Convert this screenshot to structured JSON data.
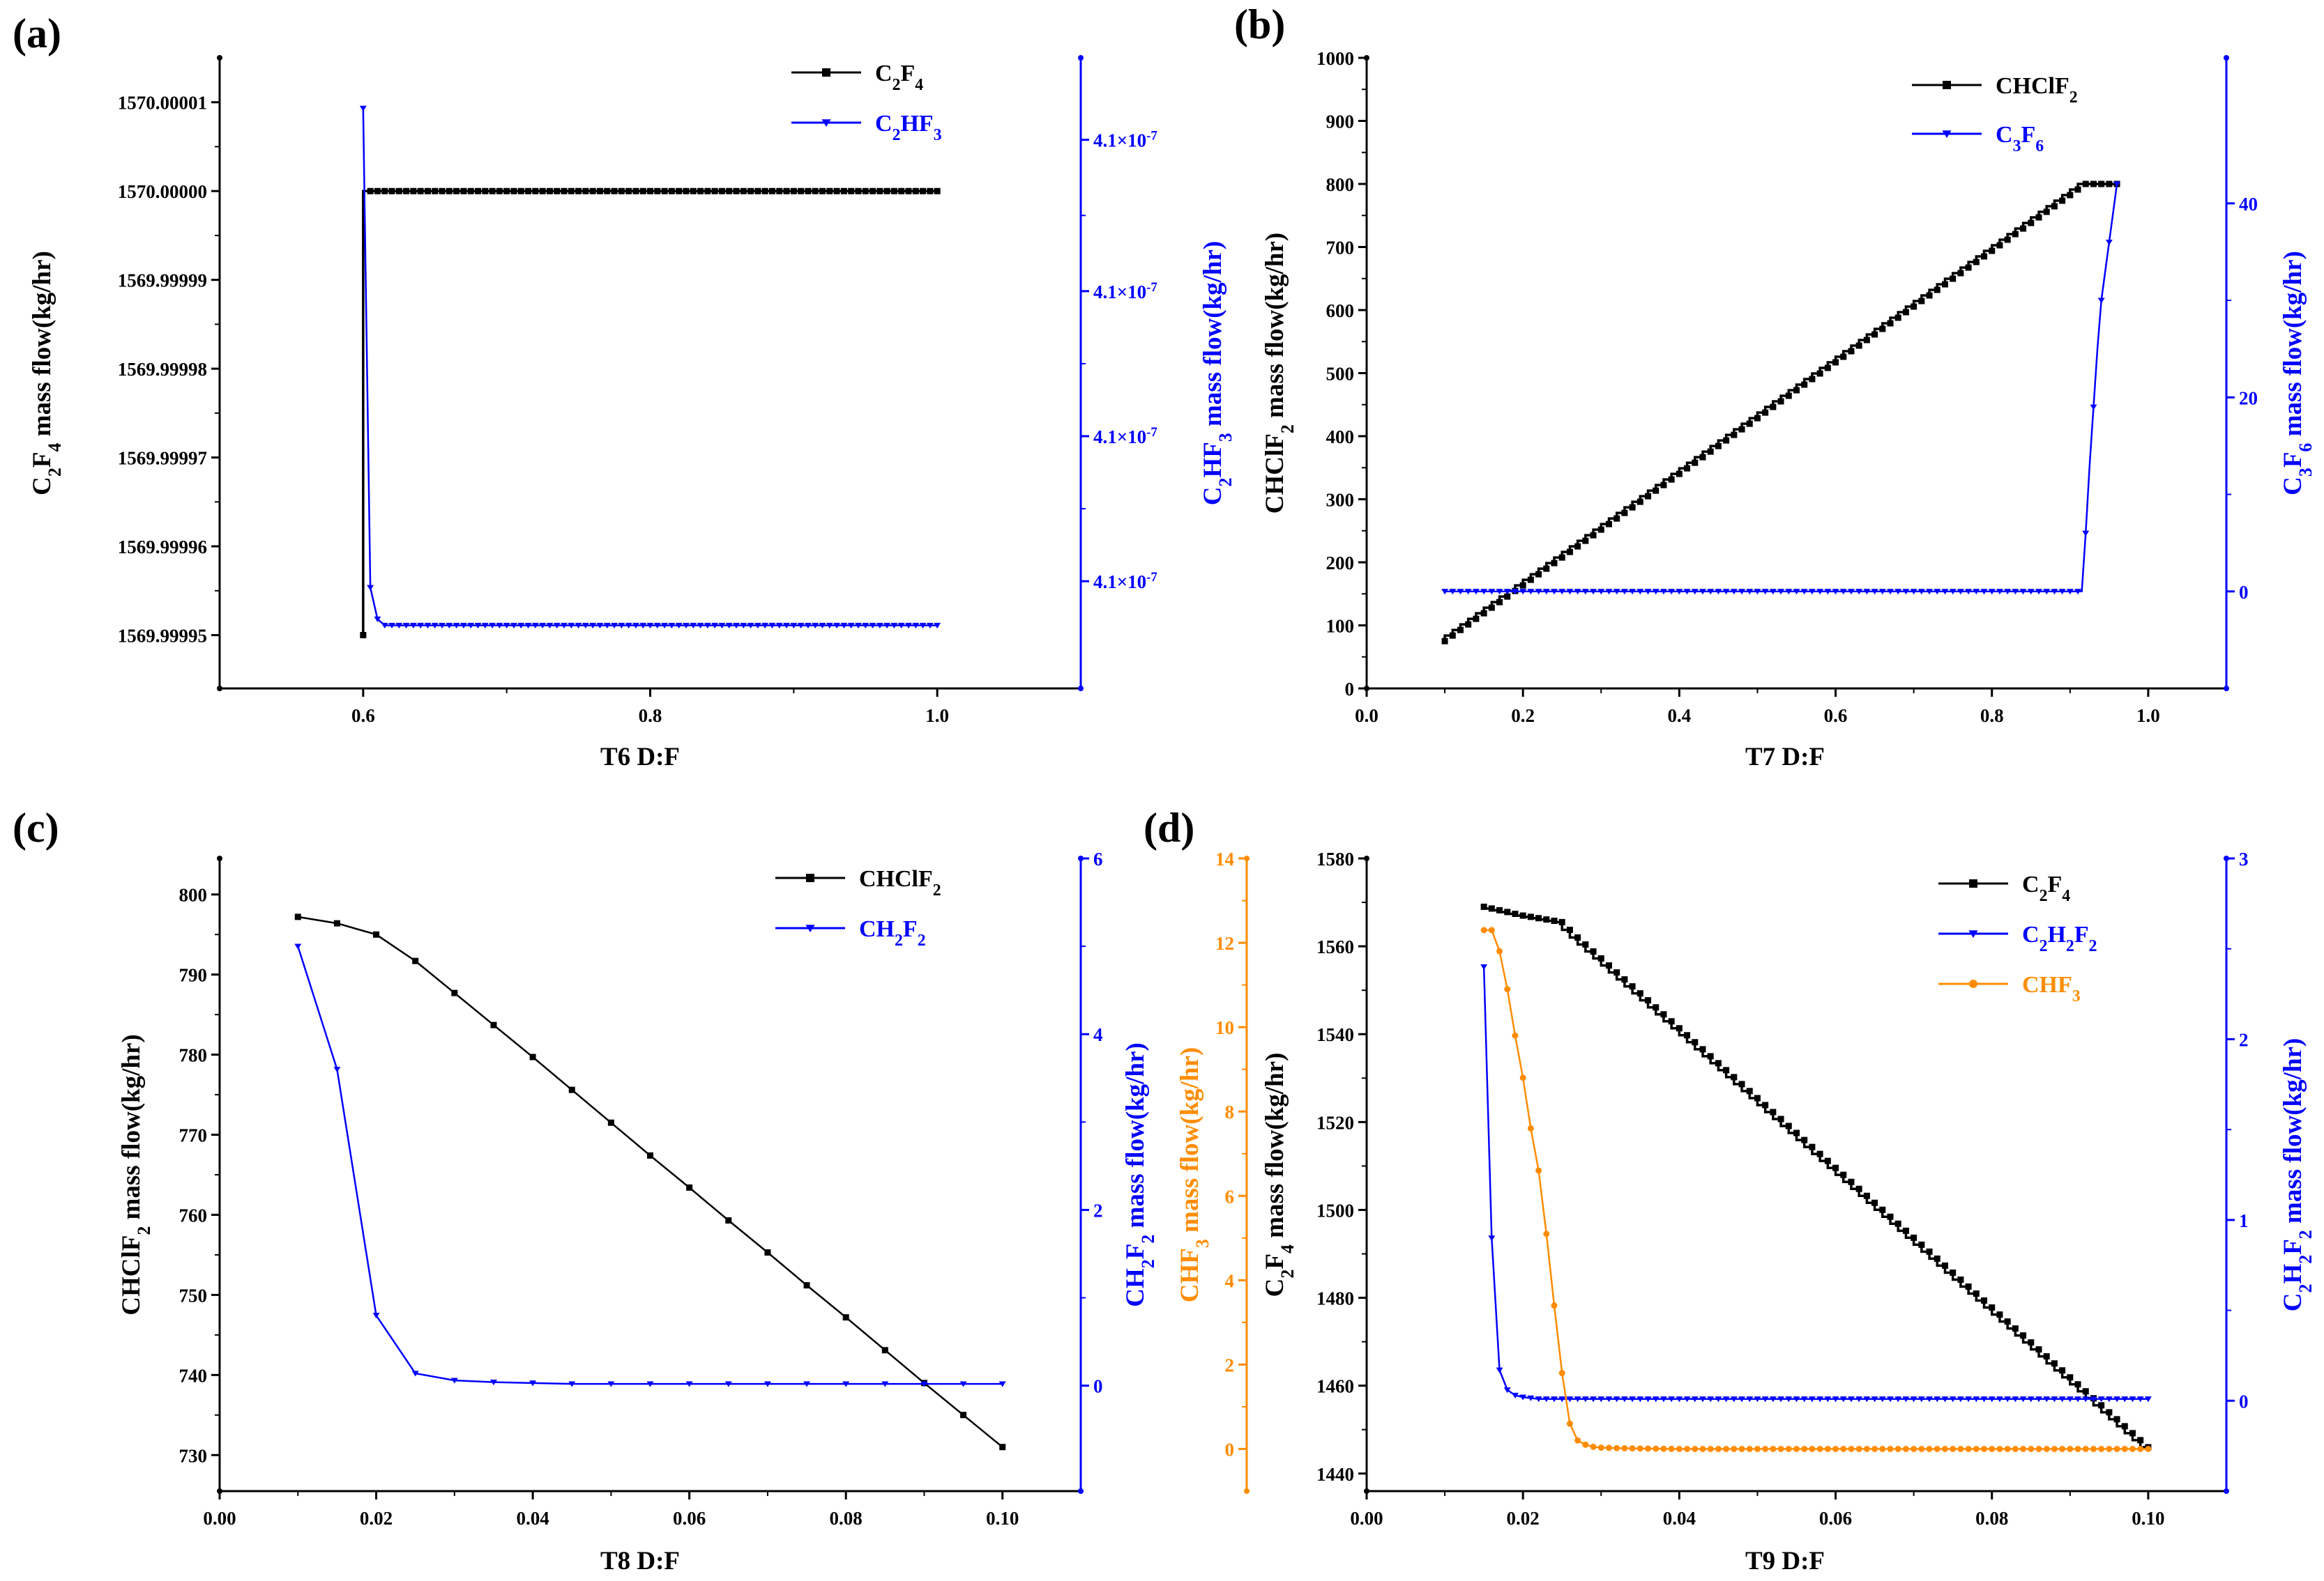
{
  "figure": {
    "colors": {
      "black": "#000000",
      "blue": "#0000ff",
      "orange": "#ff8c00"
    },
    "chart_data": [
      {
        "panel_label": "(a)",
        "type": "line",
        "title": "",
        "xlabel": "T6  D:F",
        "xlim": [
          0.5,
          1.1
        ],
        "xticks": [
          0.6,
          0.8,
          1.0
        ],
        "xtick_labels": [
          "0.6",
          "0.8",
          "1.0"
        ],
        "y_axes": [
          {
            "side": "left",
            "color": "#000000",
            "label_parts": [
              [
                "C",
                "n"
              ],
              [
                "2",
                "sub"
              ],
              [
                "F",
                "n"
              ],
              [
                "4",
                "sub"
              ],
              [
                " mass flow(kg/hr)",
                "n"
              ]
            ],
            "ylim": [
              1569.999944,
              1570.000015
            ],
            "ticks": [
              1569.99995,
              1569.99996,
              1569.99997,
              1569.99998,
              1569.99999,
              1570.0,
              1570.00001
            ],
            "tick_labels": [
              "1569.99995",
              "1569.99996",
              "1569.99997",
              "1569.99998",
              "1569.99999",
              "1570.00000",
              "1570.00001"
            ]
          },
          {
            "side": "right",
            "color": "#0000ff",
            "label_parts": [
              [
                "C",
                "n"
              ],
              [
                "2",
                "sub"
              ],
              [
                "HF",
                "n"
              ],
              [
                "3",
                "sub"
              ],
              [
                " mass flow(kg/hr)",
                "n"
              ]
            ],
            "ylim": [
              0.0,
              1.0
            ],
            "ticks": [
              0.17,
              0.4,
              0.63,
              0.87
            ],
            "tick_labels": [
              "4.1×10^-7",
              "4.1×10^-7",
              "4.1×10^-7",
              "4.1×10^-7"
            ]
          }
        ],
        "series": [
          {
            "name_parts": [
              [
                "C",
                "n"
              ],
              [
                "2",
                "sub"
              ],
              [
                "F",
                "n"
              ],
              [
                "4",
                "sub"
              ]
            ],
            "color": "#000000",
            "marker": "square",
            "axis": 0,
            "step": "after",
            "x": [
              0.6,
              0.605,
              1.0
            ],
            "y": [
              1569.99995,
              1570.0,
              1570.0
            ],
            "marker_every": 0.005
          },
          {
            "name_parts": [
              [
                "C",
                "n"
              ],
              [
                "2",
                "sub"
              ],
              [
                "HF",
                "n"
              ],
              [
                "3",
                "sub"
              ]
            ],
            "color": "#0000ff",
            "marker": "triangle-down",
            "axis": 1,
            "x": [
              0.6,
              0.605,
              0.61,
              0.615,
              0.62,
              1.0
            ],
            "y": [
              0.92,
              0.16,
              0.11,
              0.1,
              0.1,
              0.1
            ],
            "marker_every": 0.005
          }
        ]
      },
      {
        "panel_label": "(b)",
        "type": "line",
        "title": "",
        "xlabel": "T7  D:F",
        "xlim": [
          0.0,
          1.1
        ],
        "xticks": [
          0.0,
          0.2,
          0.4,
          0.6,
          0.8,
          1.0
        ],
        "xtick_labels": [
          "0.0",
          "0.2",
          "0.4",
          "0.6",
          "0.8",
          "1.0"
        ],
        "y_axes": [
          {
            "side": "left",
            "color": "#000000",
            "label_parts": [
              [
                "CHClF",
                "n"
              ],
              [
                "2",
                "sub"
              ],
              [
                " mass flow(kg/hr)",
                "n"
              ]
            ],
            "ylim": [
              0,
              1000
            ],
            "ticks": [
              0,
              100,
              200,
              300,
              400,
              500,
              600,
              700,
              800,
              900,
              1000
            ],
            "tick_labels": [
              "0",
              "100",
              "200",
              "300",
              "400",
              "500",
              "600",
              "700",
              "800",
              "900",
              "1000"
            ]
          },
          {
            "side": "right",
            "color": "#0000ff",
            "label_parts": [
              [
                "C",
                "n"
              ],
              [
                "3",
                "sub"
              ],
              [
                "F",
                "n"
              ],
              [
                "6",
                "sub"
              ],
              [
                " mass flow(kg/hr)",
                "n"
              ]
            ],
            "ylim": [
              -10,
              55
            ],
            "ticks": [
              0,
              20,
              40
            ],
            "tick_labels": [
              "0",
              "20",
              "40"
            ]
          }
        ],
        "series": [
          {
            "name_parts": [
              [
                "CHClF",
                "n"
              ],
              [
                "2",
                "sub"
              ]
            ],
            "color": "#000000",
            "marker": "square",
            "axis": 0,
            "step": "after",
            "x": [
              0.1,
              0.92,
              0.96
            ],
            "y": [
              75,
              800,
              800
            ],
            "marker_every": 0.01
          },
          {
            "name_parts": [
              [
                "C",
                "n"
              ],
              [
                "3",
                "sub"
              ],
              [
                "F",
                "n"
              ],
              [
                "6",
                "sub"
              ]
            ],
            "color": "#0000ff",
            "marker": "triangle-down",
            "axis": 1,
            "x": [
              0.1,
              0.91,
              0.915,
              0.92,
              0.925,
              0.93,
              0.935,
              0.94,
              0.945,
              0.95,
              0.955,
              0.96
            ],
            "y": [
              0,
              0,
              0,
              6,
              13,
              19,
              25,
              30,
              33,
              36,
              39,
              42
            ],
            "marker_every": 0.01
          }
        ]
      },
      {
        "panel_label": "(c)",
        "type": "line",
        "title": "",
        "xlabel": "T8  D:F",
        "xlim": [
          0.0,
          0.11
        ],
        "xticks": [
          0.0,
          0.02,
          0.04,
          0.06,
          0.08,
          0.1
        ],
        "xtick_labels": [
          "0.00",
          "0.02",
          "0.04",
          "0.06",
          "0.08",
          "0.10"
        ],
        "y_axes": [
          {
            "side": "left",
            "color": "#000000",
            "label_parts": [
              [
                "CHClF",
                "n"
              ],
              [
                "2",
                "sub"
              ],
              [
                " mass flow(kg/hr)",
                "n"
              ]
            ],
            "ylim": [
              725.5,
              804.5
            ],
            "ticks": [
              730,
              740,
              750,
              760,
              770,
              780,
              790,
              800
            ],
            "tick_labels": [
              "730",
              "740",
              "750",
              "760",
              "770",
              "780",
              "790",
              "800"
            ]
          },
          {
            "side": "right",
            "color": "#0000ff",
            "label_parts": [
              [
                "CH",
                "n"
              ],
              [
                "2",
                "sub"
              ],
              [
                "F",
                "n"
              ],
              [
                "2",
                "sub"
              ],
              [
                " mass flow(kg/hr)",
                "n"
              ]
            ],
            "ylim": [
              -1.2,
              6.0
            ],
            "ticks": [
              0,
              2,
              4,
              6
            ],
            "tick_labels": [
              "0",
              "2",
              "4",
              "6"
            ]
          }
        ],
        "series": [
          {
            "name_parts": [
              [
                "CHClF",
                "n"
              ],
              [
                "2",
                "sub"
              ]
            ],
            "color": "#000000",
            "marker": "square",
            "axis": 0,
            "x": [
              0.01,
              0.015,
              0.02,
              0.025,
              0.03,
              0.035,
              0.04,
              0.045,
              0.05,
              0.055,
              0.06,
              0.065,
              0.07,
              0.075,
              0.08,
              0.085,
              0.09,
              0.095,
              0.1
            ],
            "y": [
              797.2,
              796.4,
              795.0,
              791.7,
              787.7,
              783.7,
              779.7,
              775.6,
              771.5,
              767.4,
              763.4,
              759.3,
              755.3,
              751.2,
              747.2,
              743.1,
              739.0,
              735.0,
              731.0
            ]
          },
          {
            "name_parts": [
              [
                "CH",
                "n"
              ],
              [
                "2",
                "sub"
              ],
              [
                "F",
                "n"
              ],
              [
                "2",
                "sub"
              ]
            ],
            "color": "#0000ff",
            "marker": "triangle-down",
            "axis": 1,
            "x": [
              0.01,
              0.015,
              0.02,
              0.025,
              0.03,
              0.035,
              0.04,
              0.045,
              0.05,
              0.055,
              0.06,
              0.065,
              0.07,
              0.075,
              0.08,
              0.085,
              0.09,
              0.095,
              0.1
            ],
            "y": [
              5.0,
              3.6,
              0.8,
              0.14,
              0.06,
              0.04,
              0.03,
              0.02,
              0.02,
              0.02,
              0.02,
              0.02,
              0.02,
              0.02,
              0.02,
              0.02,
              0.02,
              0.02,
              0.02
            ]
          }
        ]
      },
      {
        "panel_label": "(d)",
        "type": "line",
        "title": "",
        "xlabel": "T9  D:F",
        "xlim": [
          0.0,
          0.11
        ],
        "xticks": [
          0.0,
          0.02,
          0.04,
          0.06,
          0.08,
          0.1
        ],
        "xtick_labels": [
          "0.00",
          "0.02",
          "0.04",
          "0.06",
          "0.08",
          "0.10"
        ],
        "y_axes": [
          {
            "side": "left",
            "color": "#000000",
            "label_parts": [
              [
                "C",
                "n"
              ],
              [
                "2",
                "sub"
              ],
              [
                "F",
                "n"
              ],
              [
                "4",
                "sub"
              ],
              [
                " mass flow(kg/hr)",
                "n"
              ]
            ],
            "ylim": [
              1436,
              1580
            ],
            "ticks": [
              1440,
              1460,
              1480,
              1500,
              1520,
              1540,
              1560,
              1580
            ],
            "tick_labels": [
              "1440",
              "1460",
              "1480",
              "1500",
              "1520",
              "1540",
              "1560",
              "1580"
            ]
          },
          {
            "side": "right",
            "color": "#0000ff",
            "label_parts": [
              [
                "C",
                "n"
              ],
              [
                "2",
                "sub"
              ],
              [
                "H",
                "n"
              ],
              [
                "2",
                "sub"
              ],
              [
                "F",
                "n"
              ],
              [
                "2",
                "sub"
              ],
              [
                " mass flow(kg/hr)",
                "n"
              ]
            ],
            "ylim": [
              -0.5,
              3.0
            ],
            "ticks": [
              0,
              1,
              2,
              3
            ],
            "tick_labels": [
              "0",
              "1",
              "2",
              "3"
            ]
          },
          {
            "side": "left-outer",
            "color": "#ff8c00",
            "label_parts": [
              [
                "CHF",
                "n"
              ],
              [
                "3",
                "sub"
              ],
              [
                " mass flow(kg/hr)",
                "n"
              ]
            ],
            "ylim": [
              -1.0,
              14.0
            ],
            "ticks": [
              0,
              2,
              4,
              6,
              8,
              10,
              12,
              14
            ],
            "tick_labels": [
              "0",
              "2",
              "4",
              "6",
              "8",
              "10",
              "12",
              "14"
            ]
          }
        ],
        "series": [
          {
            "name_parts": [
              [
                "C",
                "n"
              ],
              [
                "2",
                "sub"
              ],
              [
                "F",
                "n"
              ],
              [
                "4",
                "sub"
              ]
            ],
            "color": "#000000",
            "marker": "square",
            "axis": 0,
            "step": "after",
            "x": [
              0.015,
              0.02,
              0.025,
              0.027,
              0.1
            ],
            "y": [
              1569,
              1567,
              1565.5,
              1562,
              1446
            ],
            "marker_every": 0.001
          },
          {
            "name_parts": [
              [
                "C",
                "n"
              ],
              [
                "2",
                "sub"
              ],
              [
                "H",
                "n"
              ],
              [
                "2",
                "sub"
              ],
              [
                "F",
                "n"
              ],
              [
                "2",
                "sub"
              ]
            ],
            "color": "#0000ff",
            "marker": "triangle-down",
            "axis": 1,
            "x": [
              0.015,
              0.016,
              0.017,
              0.018,
              0.019,
              0.02,
              0.022,
              0.025,
              0.03,
              0.04,
              0.05,
              0.06,
              0.07,
              0.08,
              0.09,
              0.1
            ],
            "y": [
              2.4,
              0.9,
              0.17,
              0.06,
              0.03,
              0.02,
              0.01,
              0.01,
              0.01,
              0.01,
              0.01,
              0.01,
              0.01,
              0.01,
              0.01,
              0.01
            ],
            "marker_every": 0.001
          },
          {
            "name_parts": [
              [
                "CHF",
                "n"
              ],
              [
                "3",
                "sub"
              ]
            ],
            "color": "#ff8c00",
            "marker": "circle",
            "axis": 2,
            "x": [
              0.015,
              0.016,
              0.017,
              0.018,
              0.019,
              0.02,
              0.021,
              0.022,
              0.023,
              0.024,
              0.025,
              0.026,
              0.027,
              0.028,
              0.029,
              0.03,
              0.032,
              0.035,
              0.04,
              0.1
            ],
            "y": [
              12.3,
              12.3,
              11.8,
              10.9,
              9.8,
              8.8,
              7.6,
              6.6,
              5.1,
              3.4,
              1.8,
              0.6,
              0.2,
              0.1,
              0.05,
              0.03,
              0.02,
              0.01,
              0.0,
              0.0
            ],
            "marker_every": 0.001
          }
        ]
      }
    ]
  }
}
